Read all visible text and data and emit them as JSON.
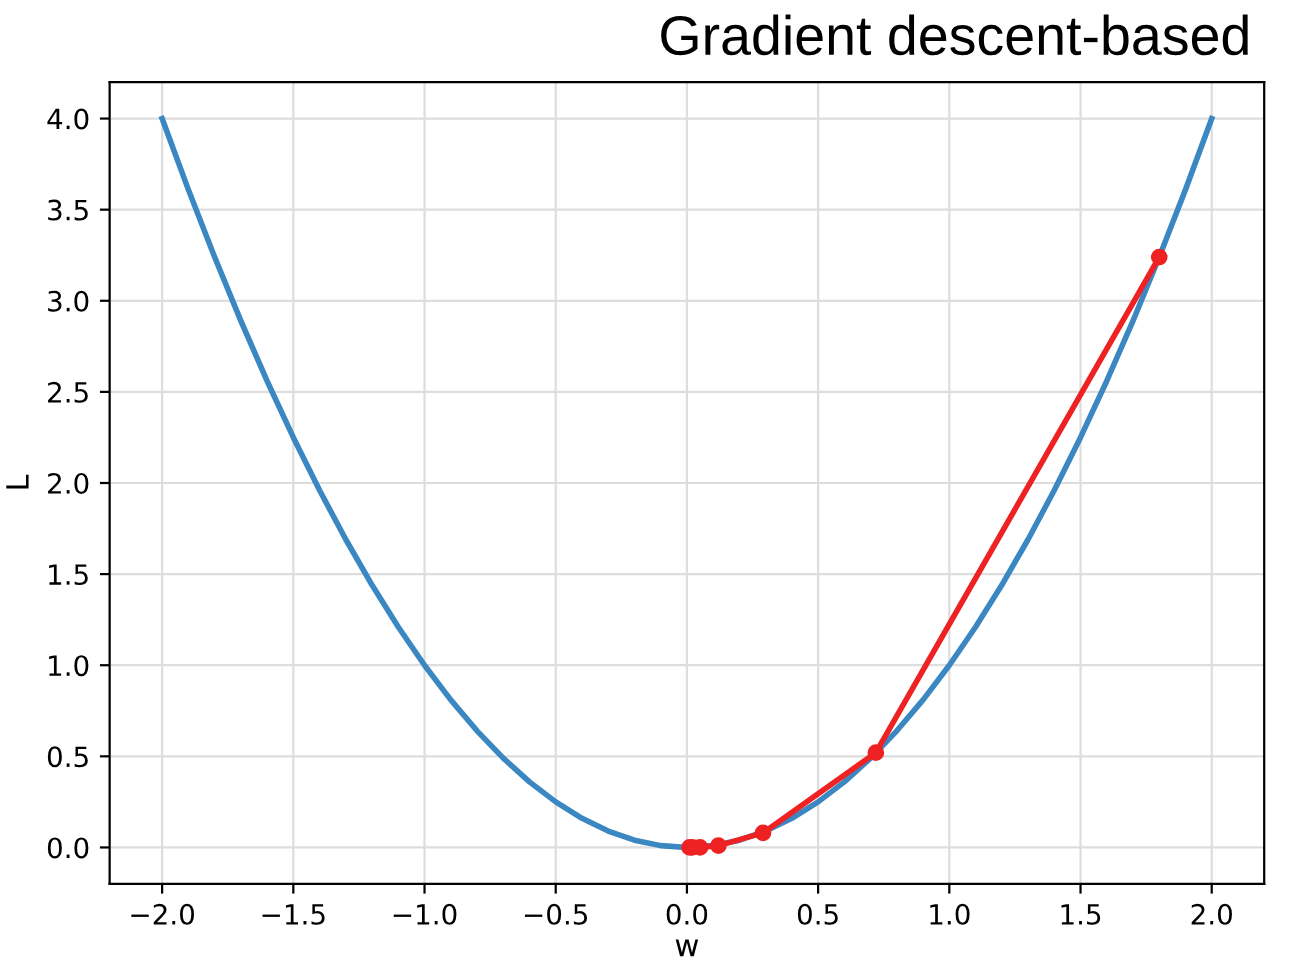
{
  "chart_data": {
    "type": "line",
    "title": "Gradient descent-based",
    "xlabel": "w",
    "ylabel": "L",
    "xlim": [
      -2.2,
      2.2
    ],
    "ylim": [
      -0.2,
      4.2
    ],
    "xticks": [
      {
        "value": -2.0,
        "label": "−2.0"
      },
      {
        "value": -1.5,
        "label": "−1.5"
      },
      {
        "value": -1.0,
        "label": "−1.0"
      },
      {
        "value": -0.5,
        "label": "−0.5"
      },
      {
        "value": 0.0,
        "label": "0.0"
      },
      {
        "value": 0.5,
        "label": "0.5"
      },
      {
        "value": 1.0,
        "label": "1.0"
      },
      {
        "value": 1.5,
        "label": "1.5"
      },
      {
        "value": 2.0,
        "label": "2.0"
      }
    ],
    "yticks": [
      {
        "value": 0.0,
        "label": "0.0"
      },
      {
        "value": 0.5,
        "label": "0.5"
      },
      {
        "value": 1.0,
        "label": "1.0"
      },
      {
        "value": 1.5,
        "label": "1.5"
      },
      {
        "value": 2.0,
        "label": "2.0"
      },
      {
        "value": 2.5,
        "label": "2.5"
      },
      {
        "value": 3.0,
        "label": "3.0"
      },
      {
        "value": 3.5,
        "label": "3.5"
      },
      {
        "value": 4.0,
        "label": "4.0"
      }
    ],
    "grid": true,
    "series": [
      {
        "color": "#3a87c2",
        "marker": "none",
        "x": [
          -2.0,
          -1.9,
          -1.8,
          -1.7,
          -1.6,
          -1.5,
          -1.4,
          -1.3,
          -1.2,
          -1.1,
          -1.0,
          -0.9,
          -0.8,
          -0.7,
          -0.6,
          -0.5,
          -0.4,
          -0.3,
          -0.2,
          -0.1,
          0.0,
          0.1,
          0.2,
          0.3,
          0.4,
          0.5,
          0.6,
          0.7,
          0.8,
          0.9,
          1.0,
          1.1,
          1.2,
          1.3,
          1.4,
          1.5,
          1.6,
          1.7,
          1.8,
          1.9,
          2.0
        ],
        "values": [
          4.0,
          3.61,
          3.24,
          2.89,
          2.56,
          2.25,
          1.96,
          1.69,
          1.44,
          1.21,
          1.0,
          0.81,
          0.64,
          0.49,
          0.36,
          0.25,
          0.16,
          0.09,
          0.04,
          0.01,
          0.0,
          0.01,
          0.04,
          0.09,
          0.16,
          0.25,
          0.36,
          0.49,
          0.64,
          0.81,
          1.0,
          1.21,
          1.44,
          1.69,
          1.96,
          2.25,
          2.56,
          2.89,
          3.24,
          3.61,
          4.0
        ]
      },
      {
        "color": "#ee2222",
        "marker": "circle",
        "x": [
          1.8,
          0.72,
          0.29,
          0.12,
          0.05,
          0.02,
          0.01
        ],
        "values": [
          3.24,
          0.52,
          0.08,
          0.01,
          0.0,
          0.0,
          0.0
        ]
      }
    ]
  }
}
